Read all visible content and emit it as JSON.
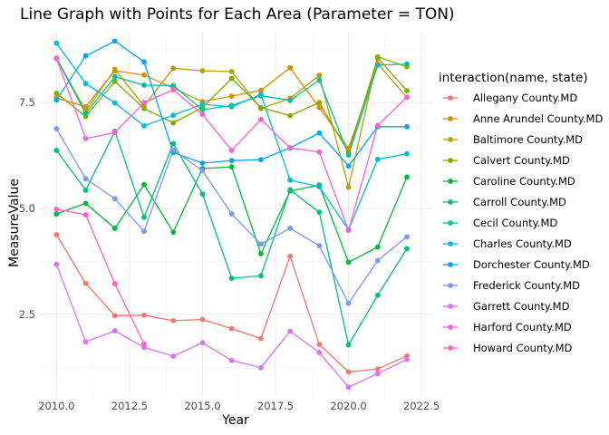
{
  "chart_data": {
    "type": "line",
    "title": "Line Graph with Points for Each Area (Parameter = TON)",
    "xlabel": "Year",
    "ylabel": "MeasureValue",
    "xlim": [
      2009.4,
      2022.9
    ],
    "ylim": [
      0.55,
      9.15
    ],
    "x_ticks": [
      2010,
      2012.5,
      2015,
      2017.5,
      2020,
      2022.5
    ],
    "x_tick_labels": [
      "2010.0",
      "2012.5",
      "2015.0",
      "2017.5",
      "2020.0",
      "2022.5"
    ],
    "y_ticks": [
      2.5,
      5.0,
      7.5
    ],
    "y_tick_labels": [
      "2.5",
      "5.0",
      "7.5"
    ],
    "grid": true,
    "legend": {
      "title": "interaction(name, state)",
      "placement": "right"
    },
    "x": [
      2010,
      2011,
      2012,
      2013,
      2014,
      2015,
      2016,
      2017,
      2018,
      2019,
      2020,
      2021,
      2022
    ],
    "series": [
      {
        "name": "Allegany County.MD",
        "color": "#F8766D",
        "values": [
          4.38,
          3.23,
          2.47,
          2.48,
          2.35,
          2.38,
          2.16,
          1.93,
          3.87,
          1.79,
          1.14,
          1.21,
          1.52
        ]
      },
      {
        "name": "Anne Arundel County.MD",
        "color": "#DE8C00",
        "values": [
          7.61,
          7.4,
          8.25,
          8.15,
          7.84,
          7.52,
          7.65,
          7.79,
          8.32,
          7.38,
          6.42,
          8.42,
          7.62
        ]
      },
      {
        "name": "Baltimore County.MD",
        "color": "#B79F00",
        "values": [
          8.55,
          7.3,
          8.28,
          7.42,
          8.31,
          8.25,
          8.23,
          7.36,
          7.6,
          8.14,
          5.5,
          8.58,
          8.34
        ]
      },
      {
        "name": "Calvert County.MD",
        "color": "#7CAE00",
        "values": [
          7.72,
          7.17,
          8.0,
          7.36,
          7.02,
          7.38,
          8.07,
          7.38,
          7.19,
          7.5,
          6.32,
          8.55,
          7.78
        ]
      },
      {
        "name": "Caroline County.MD",
        "color": "#00BA38",
        "values": [
          4.87,
          5.12,
          4.53,
          5.56,
          4.44,
          5.94,
          5.98,
          3.93,
          5.41,
          5.55,
          3.73,
          4.09,
          5.74
        ]
      },
      {
        "name": "Carroll County.MD",
        "color": "#00BF7D",
        "values": [
          6.37,
          5.43,
          6.82,
          4.79,
          6.53,
          5.34,
          3.35,
          3.41,
          5.44,
          4.91,
          1.78,
          2.95,
          4.05
        ]
      },
      {
        "name": "Cecil County.MD",
        "color": "#00C1A3",
        "values": [
          8.54,
          7.24,
          8.11,
          7.91,
          7.9,
          7.33,
          7.43,
          7.66,
          7.55,
          8.03,
          6.26,
          8.38,
          8.41
        ]
      },
      {
        "name": "Charles County.MD",
        "color": "#00BCD8",
        "values": [
          8.9,
          7.95,
          7.49,
          6.95,
          7.2,
          7.46,
          7.4,
          7.69,
          5.67,
          5.51,
          4.5,
          6.16,
          6.29
        ]
      },
      {
        "name": "Dorchester County.MD",
        "color": "#00A5FF",
        "values": [
          7.56,
          8.6,
          8.95,
          8.46,
          6.32,
          6.07,
          6.13,
          6.15,
          6.43,
          6.78,
          6.0,
          6.93,
          6.93
        ]
      },
      {
        "name": "Frederick County.MD",
        "color": "#7997FF",
        "values": [
          6.88,
          5.7,
          5.23,
          4.46,
          6.38,
          5.89,
          4.87,
          4.16,
          4.53,
          4.12,
          2.76,
          3.77,
          4.33
        ]
      },
      {
        "name": "Garrett County.MD",
        "color": "#DC71FA",
        "values": [
          3.68,
          1.85,
          2.11,
          1.72,
          1.51,
          1.83,
          1.41,
          1.24,
          2.1,
          1.6,
          0.78,
          1.1,
          1.44
        ]
      },
      {
        "name": "Harford County.MD",
        "color": "#FB61D7",
        "values": [
          8.54,
          6.65,
          6.79,
          7.5,
          7.8,
          7.22,
          6.37,
          7.1,
          6.43,
          6.33,
          4.48,
          6.96,
          7.63
        ]
      },
      {
        "name": "Howard County.MD",
        "color": "#FF61C3",
        "values": [
          4.98,
          4.85,
          3.22,
          1.8,
          null,
          null,
          null,
          null,
          null,
          null,
          null,
          null,
          null
        ]
      }
    ]
  }
}
